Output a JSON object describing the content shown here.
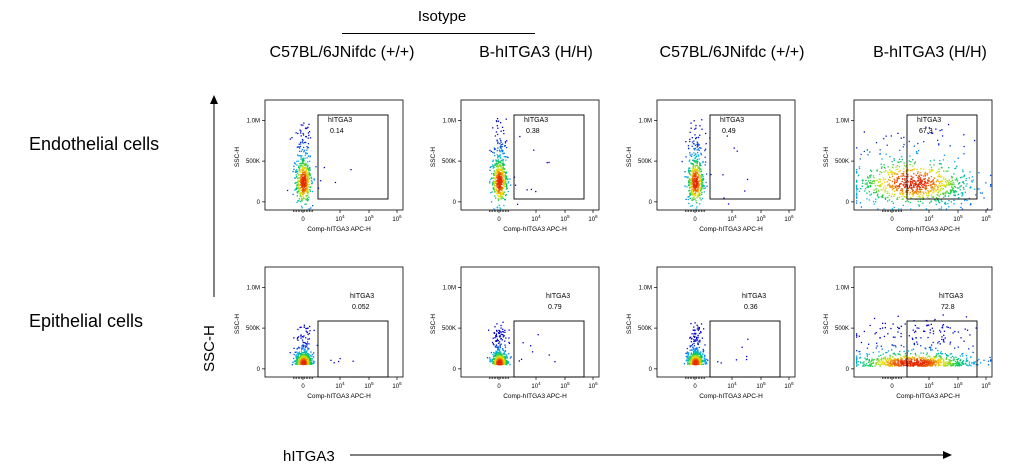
{
  "header": {
    "isotype": "Isotype"
  },
  "columns": [
    "C57BL/6JNifdc (+/+)",
    "B-hITGA3 (H/H)",
    "C57BL/6JNifdc (+/+)",
    "B-hITGA3 (H/H)"
  ],
  "rows": [
    "Endothelial cells",
    "Epithelial cells"
  ],
  "axes": {
    "y_label": "SSC-H",
    "x_label": "hITGA3",
    "panel_x_title": "Comp-hITGA3 APC-H",
    "panel_y_title": "SSC-H",
    "y_ticks": [
      "0",
      "500K",
      "1.0M"
    ],
    "x_ticks": [
      "0",
      "10",
      "10",
      "10"
    ],
    "x_tick_exp": [
      "",
      "4",
      "5",
      "6"
    ]
  },
  "chart_data": {
    "type": "scatter",
    "xlabel": "Comp-hITGA3 APC-H",
    "ylabel": "SSC-H",
    "x_scale": "log",
    "gate_name": "hITGA3",
    "panels": [
      {
        "row": "Endothelial cells",
        "column": "C57BL/6JNifdc (+/+)",
        "gate_percent": "0.14",
        "spread": "narrow"
      },
      {
        "row": "Endothelial cells",
        "column": "B-hITGA3 (H/H)",
        "gate_percent": "0.38",
        "spread": "narrow"
      },
      {
        "row": "Endothelial cells",
        "column": "C57BL/6JNifdc (+/+)",
        "gate_percent": "0.49",
        "spread": "narrow"
      },
      {
        "row": "Endothelial cells",
        "column": "B-hITGA3 (H/H)",
        "gate_percent": "67.3",
        "spread": "wide"
      },
      {
        "row": "Epithelial cells",
        "column": "C57BL/6JNifdc (+/+)",
        "gate_percent": "0.052",
        "spread": "narrow"
      },
      {
        "row": "Epithelial cells",
        "column": "B-hITGA3 (H/H)",
        "gate_percent": "0.79",
        "spread": "narrow"
      },
      {
        "row": "Epithelial cells",
        "column": "C57BL/6JNifdc (+/+)",
        "gate_percent": "0.36",
        "spread": "narrow"
      },
      {
        "row": "Epithelial cells",
        "column": "B-hITGA3 (H/H)",
        "gate_percent": "72.8",
        "spread": "wide"
      }
    ]
  }
}
